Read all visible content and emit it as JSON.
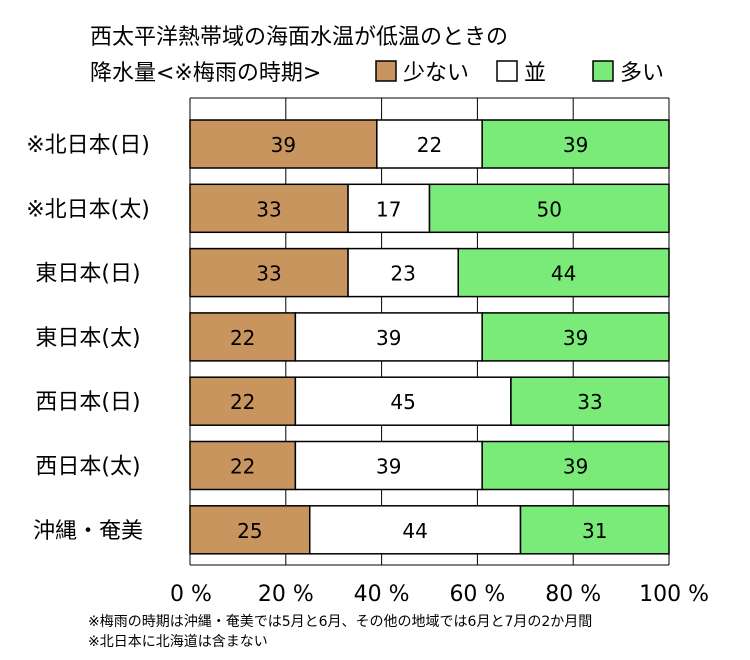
{
  "chart_data": {
    "type": "bar",
    "stacked": true,
    "orientation": "horizontal",
    "title_lines": [
      "西太平洋熱帯域の海面水温が低温のときの",
      "降水量<※梅雨の時期>"
    ],
    "categories": [
      "※北日本(日)",
      "※北日本(太)",
      "東日本(日)",
      "東日本(太)",
      "西日本(日)",
      "西日本(太)",
      "沖縄・奄美"
    ],
    "series": [
      {
        "name": "少ない",
        "color": "#c8955f",
        "values": [
          39,
          33,
          33,
          22,
          22,
          22,
          25
        ]
      },
      {
        "name": "並",
        "color": "#ffffff",
        "values": [
          22,
          17,
          23,
          39,
          45,
          39,
          44
        ]
      },
      {
        "name": "多い",
        "color": "#7aeb78",
        "values": [
          39,
          50,
          44,
          39,
          33,
          39,
          31
        ]
      }
    ],
    "xlim": [
      0,
      100
    ],
    "x_ticks": [
      "0 %",
      "20 %",
      "40 %",
      "60 %",
      "80 %",
      "100 %"
    ],
    "grid": true,
    "legend_position": "top-right",
    "footnotes": [
      "※梅雨の時期は沖縄・奄美では5月と6月、その他の地域では6月と7月の2か月間",
      "※北日本に北海道は含まない"
    ]
  }
}
